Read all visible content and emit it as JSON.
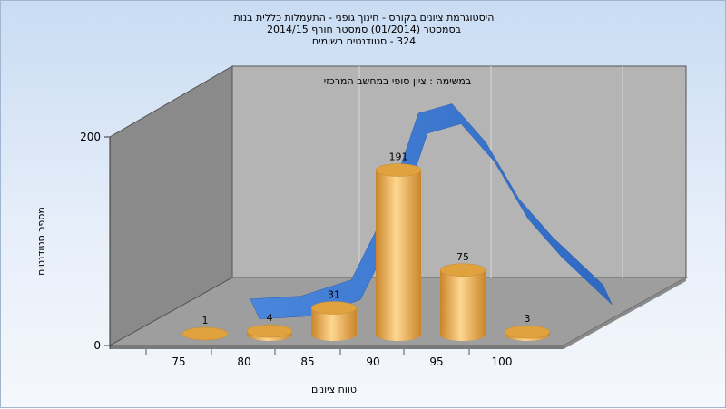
{
  "chart_data": {
    "type": "bar",
    "title_lines": [
      "היסטוגרמת ציונים בקורס - חינוך גופני - התעמלות כללית בנות",
      "בסמסטר (01/2014) סמסטר חורף 2014/15",
      "324 - סטודנטים רשומים"
    ],
    "caption": "במשימה : ציון סופי במחשב המרכזי",
    "xlabel": "טווח ציונים",
    "ylabel": "מספר סטודנטים",
    "x_ticks": [
      "75",
      "80",
      "85",
      "90",
      "95",
      "100"
    ],
    "y_ticks": [
      "0",
      "200"
    ],
    "ylim": [
      0,
      200
    ],
    "series": [
      {
        "type": "bar",
        "categories": [
          "75",
          "80",
          "85",
          "90",
          "95",
          "100"
        ],
        "values": [
          1,
          4,
          31,
          191,
          75,
          3
        ],
        "labels": [
          "1",
          "4",
          "31",
          "191",
          "75",
          "3"
        ],
        "color": "#e8a53c"
      },
      {
        "type": "area-curve",
        "x": [
          82,
          85,
          88,
          90,
          92,
          94,
          96,
          98,
          100,
          103
        ],
        "y": [
          5,
          8,
          25,
          95,
          200,
          210,
          170,
          110,
          70,
          20
        ],
        "color": "#3a78d0"
      }
    ],
    "grid": true
  }
}
